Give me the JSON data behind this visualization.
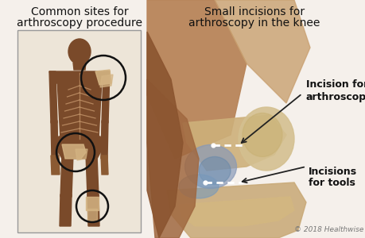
{
  "bg_color": "#f5f0eb",
  "left_title1": "Common sites for",
  "left_title2": "arthroscopy procedure",
  "right_title1": "Small incisions for",
  "right_title2": "arthroscopy in the knee",
  "label1_line1": "Incision for",
  "label1_line2": "arthroscope",
  "label2_line1": "Incisions",
  "label2_line2": "for tools",
  "copyright": "© 2018 Healthwise",
  "body_color": "#7a4a2a",
  "body_color2": "#8b5a32",
  "skin_mid": "#9b6040",
  "bone_color": "#d4b483",
  "rib_color": "#c4956a",
  "box_edge": "#aaaaaa",
  "circle_color": "#111111",
  "knee_skin": "#c4956a",
  "knee_bone": "#d4c090",
  "knee_blue": "#8099b0",
  "knee_dark": "#7a5535",
  "thigh_color": "#b8855a"
}
